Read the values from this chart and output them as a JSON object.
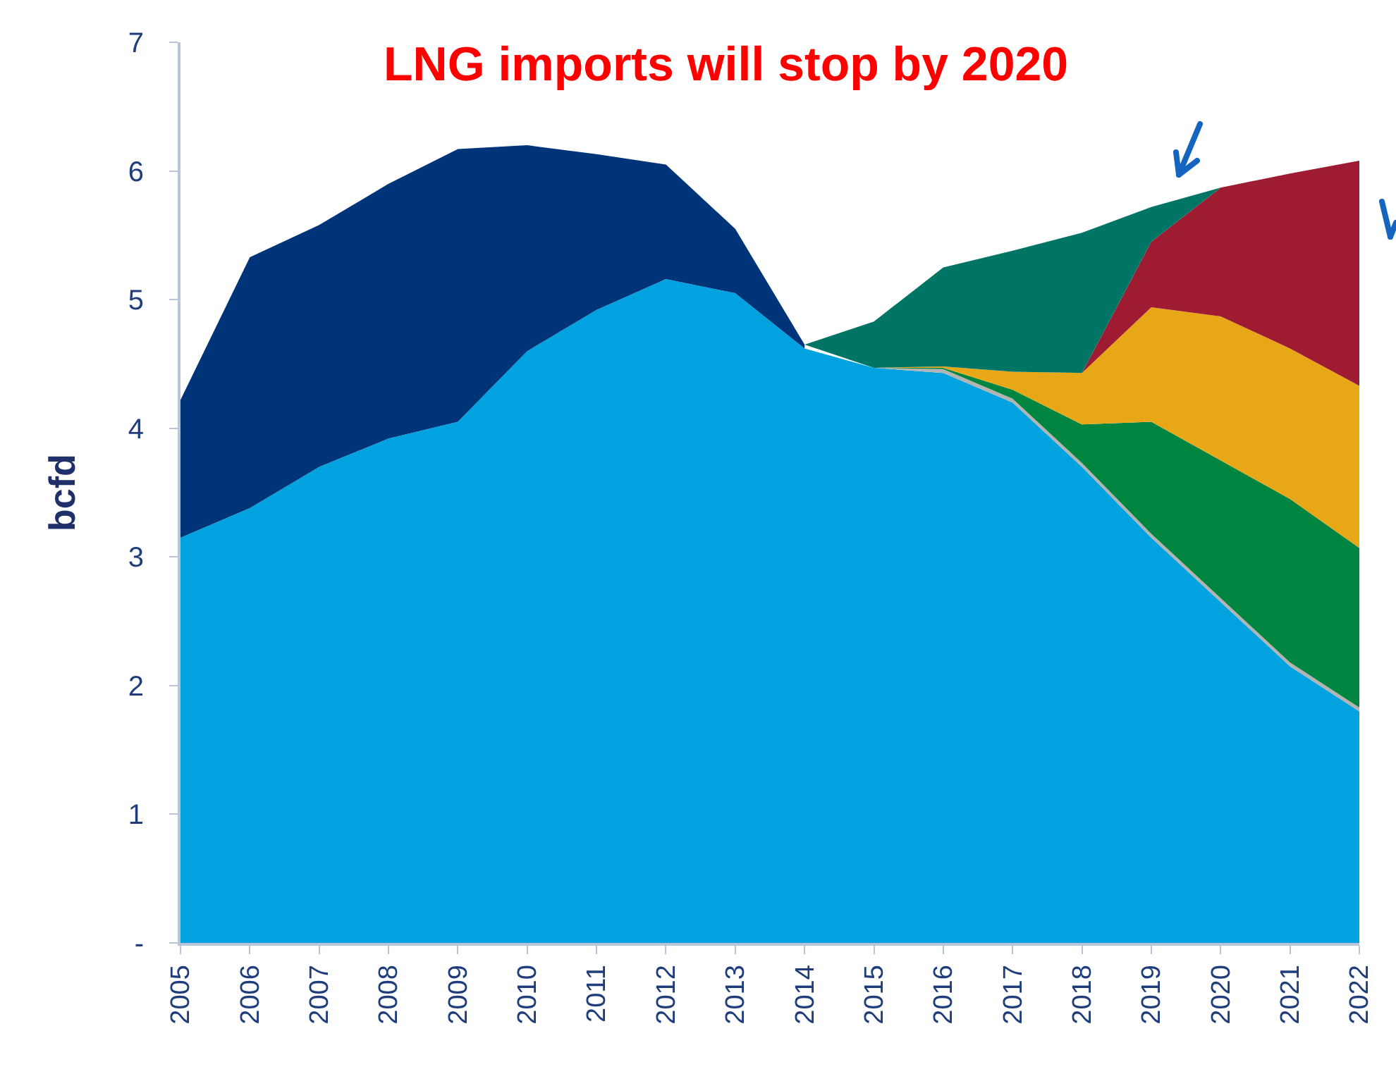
{
  "chart_data": {
    "type": "area",
    "title": "LNG imports will stop by 2020",
    "ylabel": "bcfd",
    "categories": [
      "2005",
      "2006",
      "2007",
      "2008",
      "2009",
      "2010",
      "2011",
      "2012",
      "2013",
      "2014",
      "2015",
      "2016",
      "2017",
      "2018",
      "2019",
      "2020",
      "2021",
      "2022"
    ],
    "stacked": true,
    "series": [
      {
        "color": "#00a3e0",
        "values": [
          3.15,
          3.38,
          3.7,
          3.92,
          4.05,
          4.6,
          4.92,
          5.16,
          5.05,
          4.62,
          4.47,
          4.43,
          4.2,
          3.7,
          3.15,
          2.65,
          2.15,
          1.8
        ]
      },
      {
        "color": "#b3b3b3",
        "values": [
          null,
          null,
          null,
          null,
          null,
          null,
          null,
          null,
          null,
          null,
          0,
          0.03,
          0.03,
          0.03,
          0.03,
          0.03,
          0.03,
          0.03
        ]
      },
      {
        "color": "#003478",
        "values": [
          1.07,
          1.95,
          1.88,
          1.98,
          2.12,
          1.6,
          1.21,
          0.89,
          0.5,
          0.03,
          null,
          null,
          null,
          null,
          null,
          null,
          null,
          null
        ]
      },
      {
        "color": "#008540",
        "values": [
          null,
          null,
          null,
          null,
          null,
          null,
          null,
          null,
          null,
          null,
          0,
          0.01,
          0.07,
          0.3,
          0.87,
          1.07,
          1.27,
          1.24
        ]
      },
      {
        "color": "#e8a717",
        "values": [
          null,
          null,
          null,
          null,
          null,
          null,
          null,
          null,
          null,
          null,
          0,
          0.01,
          0.14,
          0.4,
          0.89,
          1.12,
          1.17,
          1.26
        ]
      },
      {
        "color": "#9e1b32",
        "values": [
          null,
          null,
          null,
          null,
          null,
          null,
          null,
          null,
          null,
          null,
          null,
          null,
          null,
          0,
          0.51,
          1.0,
          1.36,
          1.75
        ]
      },
      {
        "color": "#007566",
        "values": [
          null,
          null,
          null,
          null,
          null,
          null,
          null,
          null,
          null,
          0,
          0.36,
          0.77,
          0.94,
          1.09,
          0.27,
          0,
          null,
          null
        ]
      }
    ],
    "ylim": [
      0,
      7
    ],
    "yticks": [
      {
        "value": 0,
        "label": "-"
      },
      1,
      2,
      3,
      4,
      5,
      6,
      7
    ]
  }
}
